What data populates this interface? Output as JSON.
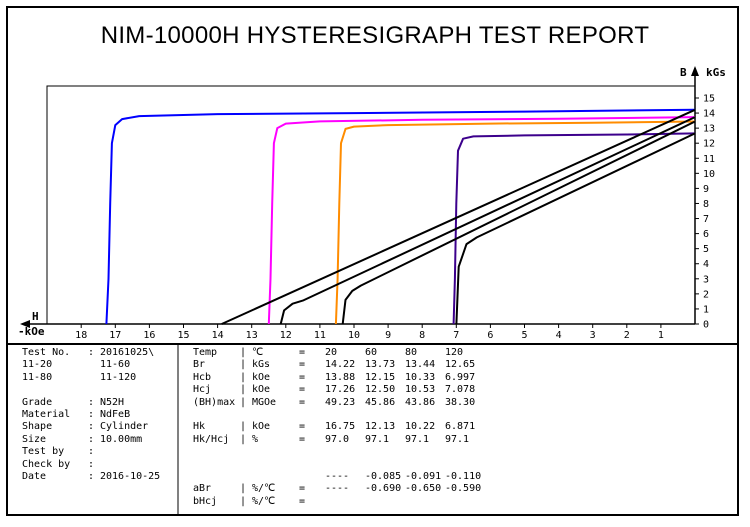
{
  "title": "NIM-10000H HYSTERESIGRAPH TEST REPORT",
  "chart_data": {
    "type": "line",
    "x_axis": {
      "name": "H",
      "unit": "-kOe",
      "ticks": [
        18,
        17,
        16,
        15,
        14,
        13,
        12,
        11,
        10,
        9,
        8,
        7,
        6,
        5,
        4,
        3,
        2,
        1
      ],
      "range": [
        19,
        0
      ]
    },
    "y_axis": {
      "name": "B",
      "unit": "kGs",
      "ticks": [
        0,
        1,
        2,
        3,
        4,
        5,
        6,
        7,
        8,
        9,
        10,
        11,
        12,
        13,
        14,
        15
      ],
      "range": [
        0,
        15
      ]
    },
    "series": [
      {
        "color": "#0000ff",
        "kind": "J",
        "points": [
          [
            17.26,
            0
          ],
          [
            17.2,
            3
          ],
          [
            17.15,
            8
          ],
          [
            17.1,
            12
          ],
          [
            17.0,
            13.2
          ],
          [
            16.8,
            13.6
          ],
          [
            16.3,
            13.8
          ],
          [
            14,
            13.93
          ],
          [
            10,
            14.0
          ],
          [
            5,
            14.1
          ],
          [
            0,
            14.22
          ]
        ]
      },
      {
        "color": "#ff00ff",
        "kind": "J",
        "points": [
          [
            12.5,
            0
          ],
          [
            12.45,
            3
          ],
          [
            12.4,
            8
          ],
          [
            12.35,
            12
          ],
          [
            12.25,
            13.0
          ],
          [
            12.0,
            13.3
          ],
          [
            11,
            13.45
          ],
          [
            8,
            13.55
          ],
          [
            4,
            13.62
          ],
          [
            0,
            13.73
          ]
        ]
      },
      {
        "color": "#ff8c00",
        "kind": "J",
        "points": [
          [
            10.53,
            0
          ],
          [
            10.48,
            3
          ],
          [
            10.43,
            8
          ],
          [
            10.38,
            12
          ],
          [
            10.25,
            12.95
          ],
          [
            10.0,
            13.1
          ],
          [
            9,
            13.2
          ],
          [
            6,
            13.3
          ],
          [
            3,
            13.36
          ],
          [
            0,
            13.44
          ]
        ]
      },
      {
        "color": "#3c008c",
        "kind": "J",
        "points": [
          [
            7.08,
            0
          ],
          [
            7.04,
            3
          ],
          [
            7.0,
            8
          ],
          [
            6.95,
            11.5
          ],
          [
            6.8,
            12.3
          ],
          [
            6.5,
            12.45
          ],
          [
            5,
            12.52
          ],
          [
            2,
            12.58
          ],
          [
            0,
            12.65
          ]
        ]
      },
      {
        "color": "#000000",
        "kind": "B",
        "points": [
          [
            13.88,
            0
          ],
          [
            0,
            14.22
          ]
        ]
      },
      {
        "color": "#000000",
        "kind": "B",
        "points": [
          [
            12.15,
            0
          ],
          [
            12.05,
            0.9
          ],
          [
            11.8,
            1.35
          ],
          [
            11.5,
            1.55
          ],
          [
            0,
            13.73
          ]
        ]
      },
      {
        "color": "#000000",
        "kind": "B",
        "points": [
          [
            10.33,
            0
          ],
          [
            10.25,
            1.6
          ],
          [
            10.05,
            2.2
          ],
          [
            9.8,
            2.55
          ],
          [
            0,
            13.44
          ]
        ]
      },
      {
        "color": "#000000",
        "kind": "B",
        "points": [
          [
            6.997,
            0
          ],
          [
            6.93,
            3.8
          ],
          [
            6.7,
            5.3
          ],
          [
            6.4,
            5.75
          ],
          [
            0,
            12.65
          ]
        ]
      }
    ]
  },
  "info": [
    {
      "label": "Test No.",
      "value": "20161025\\"
    },
    {
      "label": "11-20",
      "value": "11-60"
    },
    {
      "label": "11-80",
      "value": "11-120"
    },
    {
      "label": "",
      "value": ""
    },
    {
      "label": "Grade",
      "value": "N52H"
    },
    {
      "label": "Material",
      "value": "NdFeB"
    },
    {
      "label": "Shape",
      "value": "Cylinder"
    },
    {
      "label": "Size",
      "value": "10.00mm"
    },
    {
      "label": "Test by",
      "value": ""
    },
    {
      "label": "Check by",
      "value": ""
    },
    {
      "label": "Date",
      "value": "2016-10-25"
    }
  ],
  "results": [
    {
      "name": "Temp",
      "unit": "℃",
      "eq": "=",
      "v": [
        "20",
        "60",
        "80",
        "120"
      ]
    },
    {
      "name": "Br",
      "unit": "kGs",
      "eq": "=",
      "v": [
        "14.22",
        "13.73",
        "13.44",
        "12.65"
      ]
    },
    {
      "name": "Hcb",
      "unit": "kOe",
      "eq": "=",
      "v": [
        "13.88",
        "12.15",
        "10.33",
        "6.997"
      ]
    },
    {
      "name": "Hcj",
      "unit": "kOe",
      "eq": "=",
      "v": [
        "17.26",
        "12.50",
        "10.53",
        "7.078"
      ]
    },
    {
      "name": "(BH)max",
      "unit": "MGOe",
      "eq": "=",
      "v": [
        "49.23",
        "45.86",
        "43.86",
        "38.30"
      ]
    },
    {
      "name": "",
      "unit": "",
      "eq": "",
      "v": [
        "",
        "",
        "",
        ""
      ]
    },
    {
      "name": "Hk",
      "unit": "kOe",
      "eq": "=",
      "v": [
        "16.75",
        "12.13",
        "10.22",
        "6.871"
      ]
    },
    {
      "name": "Hk/Hcj",
      "unit": "%",
      "eq": "=",
      "v": [
        "97.0",
        "97.1",
        "97.1",
        "97.1"
      ]
    },
    {
      "name": "",
      "unit": "",
      "eq": "",
      "v": [
        "",
        "",
        "",
        ""
      ]
    },
    {
      "name": "",
      "unit": "",
      "eq": "",
      "v": [
        "",
        "",
        "",
        ""
      ]
    },
    {
      "name": "",
      "unit": "",
      "eq": "",
      "v": [
        "----",
        "-0.085",
        "-0.091",
        "-0.110"
      ]
    },
    {
      "name": "aBr",
      "unit": "%/℃",
      "eq": "=",
      "v": [
        "----",
        "-0.690",
        "-0.650",
        "-0.590"
      ]
    },
    {
      "name": "bHcj",
      "unit": "%/℃",
      "eq": "=",
      "v": [
        "",
        "",
        "",
        ""
      ]
    }
  ]
}
